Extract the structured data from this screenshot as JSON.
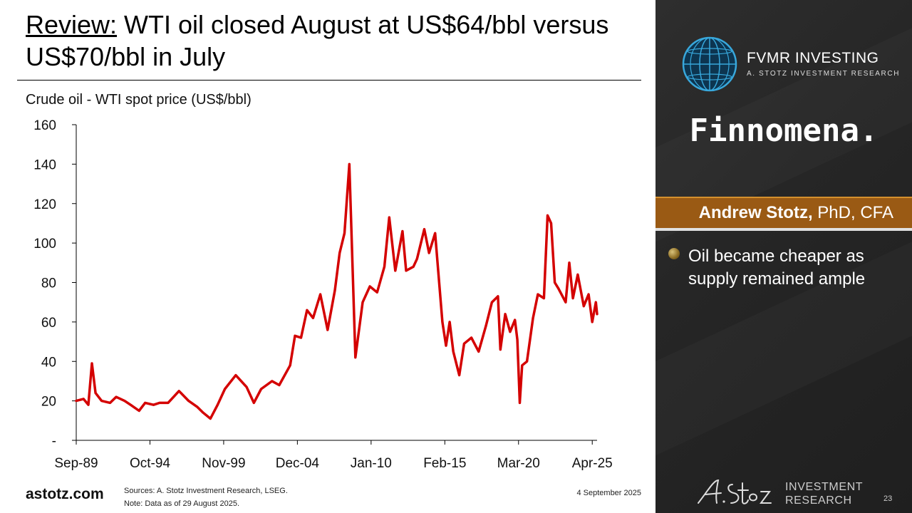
{
  "slide": {
    "title_lead": "Review:",
    "title_rest": " WTI oil closed August at US$64/bbl versus US$70/bbl in July",
    "footer_logo": "astotz.com",
    "sources": "Sources: A. Stotz Investment Research, LSEG.",
    "note": "Note: Data as of 29 August 2025.",
    "date": "4 September 2025",
    "page_number": "23"
  },
  "sidebar": {
    "brand_name": "FVMR INVESTING",
    "brand_sub": "A. STOTZ INVESTMENT RESEARCH",
    "partner": "Finnomena.",
    "presenter_name": "Andrew Stotz,",
    "presenter_creds": " PhD, CFA",
    "bullet": "Oil became cheaper as supply remained ample",
    "footer_brand_line1": "INVESTMENT",
    "footer_brand_line2": "RESEARCH"
  },
  "chart_data": {
    "type": "line",
    "title": "Crude oil - WTI spot price (US$/bbl)",
    "x_tick_labels": [
      "Sep-89",
      "Oct-94",
      "Nov-99",
      "Dec-04",
      "Jan-10",
      "Feb-15",
      "Mar-20",
      "Apr-25"
    ],
    "x_range": [
      "1989-09",
      "2025-08"
    ],
    "y_ticks": [
      0,
      20,
      40,
      60,
      80,
      100,
      120,
      140,
      160
    ],
    "y_tick_labels": [
      "-",
      "20",
      "40",
      "60",
      "80",
      "100",
      "120",
      "140",
      "160"
    ],
    "ylim": [
      0,
      160
    ],
    "grid": false,
    "legend": "none",
    "series": [
      {
        "color": "#d40000",
        "points": [
          [
            "1989-09",
            20
          ],
          [
            "1990-03",
            21
          ],
          [
            "1990-07",
            18
          ],
          [
            "1990-10",
            39
          ],
          [
            "1991-01",
            24
          ],
          [
            "1991-06",
            20
          ],
          [
            "1992-01",
            19
          ],
          [
            "1992-06",
            22
          ],
          [
            "1993-01",
            20
          ],
          [
            "1993-06",
            18
          ],
          [
            "1994-01",
            15
          ],
          [
            "1994-06",
            19
          ],
          [
            "1995-01",
            18
          ],
          [
            "1995-06",
            19
          ],
          [
            "1996-01",
            19
          ],
          [
            "1996-10",
            25
          ],
          [
            "1997-06",
            20
          ],
          [
            "1998-01",
            17
          ],
          [
            "1998-06",
            14
          ],
          [
            "1998-12",
            11
          ],
          [
            "1999-06",
            18
          ],
          [
            "1999-12",
            26
          ],
          [
            "2000-09",
            33
          ],
          [
            "2001-06",
            27
          ],
          [
            "2001-12",
            19
          ],
          [
            "2002-06",
            26
          ],
          [
            "2003-03",
            30
          ],
          [
            "2003-09",
            28
          ],
          [
            "2004-06",
            38
          ],
          [
            "2004-10",
            53
          ],
          [
            "2005-03",
            52
          ],
          [
            "2005-08",
            66
          ],
          [
            "2006-01",
            62
          ],
          [
            "2006-07",
            74
          ],
          [
            "2007-01",
            56
          ],
          [
            "2007-07",
            76
          ],
          [
            "2007-11",
            95
          ],
          [
            "2008-03",
            105
          ],
          [
            "2008-07",
            140
          ],
          [
            "2008-12",
            42
          ],
          [
            "2009-06",
            70
          ],
          [
            "2009-12",
            78
          ],
          [
            "2010-06",
            75
          ],
          [
            "2010-12",
            88
          ],
          [
            "2011-04",
            113
          ],
          [
            "2011-09",
            86
          ],
          [
            "2012-03",
            106
          ],
          [
            "2012-06",
            86
          ],
          [
            "2012-12",
            88
          ],
          [
            "2013-03",
            92
          ],
          [
            "2013-09",
            107
          ],
          [
            "2014-01",
            95
          ],
          [
            "2014-06",
            105
          ],
          [
            "2014-12",
            60
          ],
          [
            "2015-03",
            48
          ],
          [
            "2015-06",
            60
          ],
          [
            "2015-09",
            45
          ],
          [
            "2016-02",
            33
          ],
          [
            "2016-06",
            49
          ],
          [
            "2016-12",
            52
          ],
          [
            "2017-06",
            45
          ],
          [
            "2017-12",
            58
          ],
          [
            "2018-05",
            70
          ],
          [
            "2018-10",
            73
          ],
          [
            "2018-12",
            46
          ],
          [
            "2019-04",
            64
          ],
          [
            "2019-08",
            55
          ],
          [
            "2019-12",
            61
          ],
          [
            "2020-02",
            51
          ],
          [
            "2020-04",
            19
          ],
          [
            "2020-06",
            38
          ],
          [
            "2020-10",
            40
          ],
          [
            "2021-03",
            62
          ],
          [
            "2021-07",
            74
          ],
          [
            "2021-12",
            72
          ],
          [
            "2022-03",
            114
          ],
          [
            "2022-06",
            110
          ],
          [
            "2022-09",
            80
          ],
          [
            "2022-12",
            77
          ],
          [
            "2023-06",
            70
          ],
          [
            "2023-09",
            90
          ],
          [
            "2023-12",
            72
          ],
          [
            "2024-04",
            84
          ],
          [
            "2024-09",
            68
          ],
          [
            "2025-01",
            74
          ],
          [
            "2025-04",
            60
          ],
          [
            "2025-07",
            70
          ],
          [
            "2025-08",
            64
          ]
        ]
      }
    ]
  }
}
